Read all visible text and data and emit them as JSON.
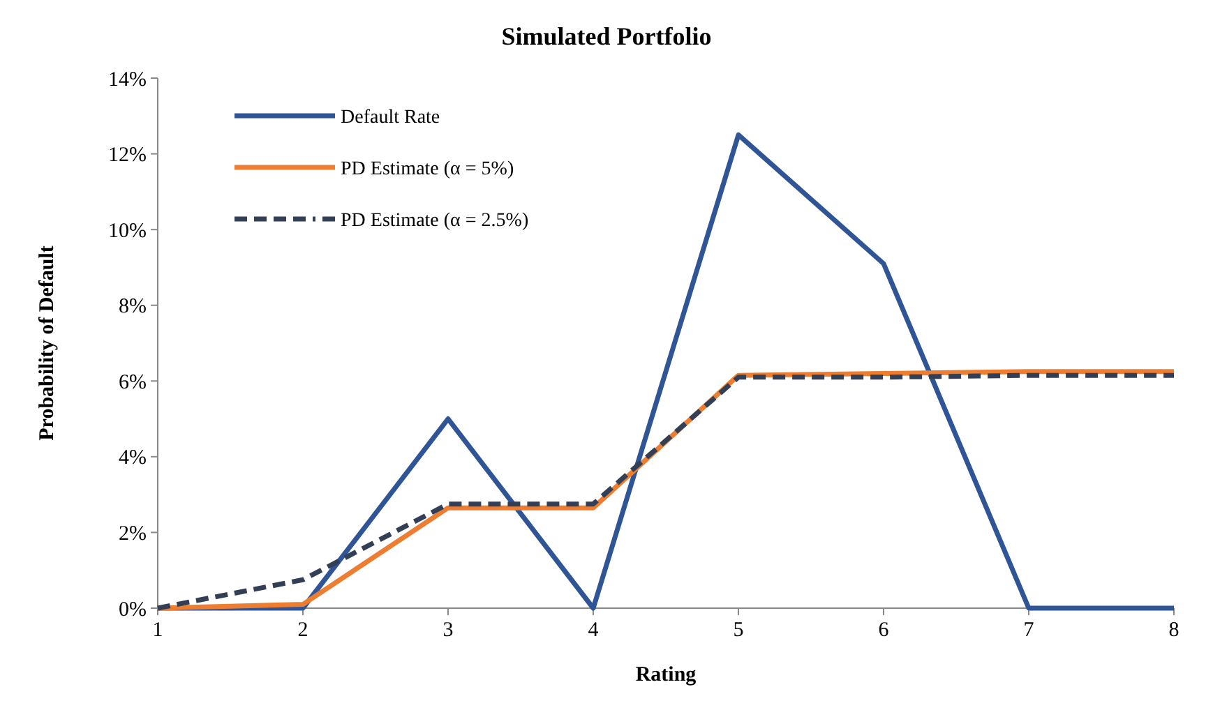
{
  "chart_data": {
    "type": "line",
    "title": "Simulated Portfolio",
    "xlabel": "Rating",
    "ylabel": "Probability of Default",
    "x": [
      1,
      2,
      3,
      4,
      5,
      6,
      7,
      8
    ],
    "xlim": [
      1,
      8
    ],
    "xticks": [
      1,
      2,
      3,
      4,
      5,
      6,
      7,
      8
    ],
    "ylim": [
      0,
      14
    ],
    "yticks": [
      {
        "value": 0,
        "label": "0%"
      },
      {
        "value": 2,
        "label": "2%"
      },
      {
        "value": 4,
        "label": "4%"
      },
      {
        "value": 6,
        "label": "6%"
      },
      {
        "value": 8,
        "label": "8%"
      },
      {
        "value": 10,
        "label": "10%"
      },
      {
        "value": 12,
        "label": "12%"
      },
      {
        "value": 14,
        "label": "14%"
      }
    ],
    "legend": "top left",
    "grid": false,
    "marker": "none",
    "series": [
      {
        "name": "Default Rate",
        "color": "#2f5597",
        "line_style": "solid",
        "values": [
          0,
          0,
          5,
          0,
          12.5,
          9.1,
          0,
          0
        ]
      },
      {
        "name": "PD Estimate (α = 5%)",
        "color": "#ed7d31",
        "line_style": "solid",
        "values": [
          0,
          0.1,
          2.65,
          2.65,
          6.15,
          6.2,
          6.25,
          6.25
        ]
      },
      {
        "name": "PD Estimate (α = 2.5%)",
        "color": "#323f54",
        "line_style": "dashed",
        "values": [
          0,
          0.75,
          2.75,
          2.75,
          6.1,
          6.1,
          6.15,
          6.15
        ]
      }
    ]
  }
}
